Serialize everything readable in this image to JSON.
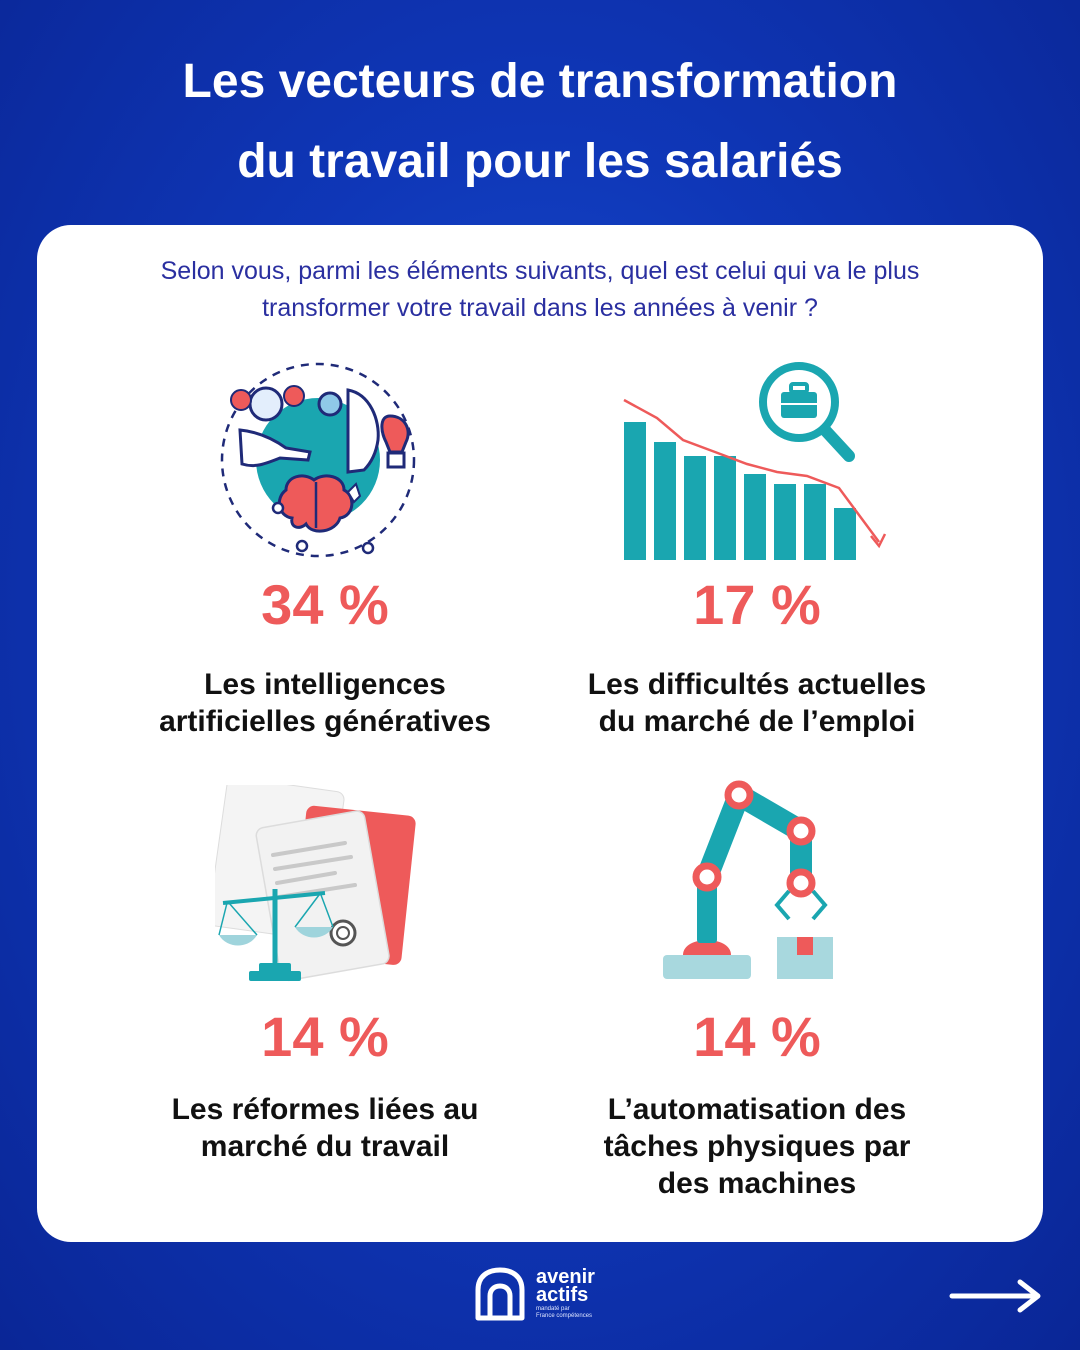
{
  "title": {
    "line1": "Les vecteurs de transformation",
    "line2": "du travail pour les salariés"
  },
  "question": "Selon vous, parmi les éléments suivants, quel est celui qui va le plus transformer votre travail dans les années à venir ?",
  "items": [
    {
      "percent": "34 %",
      "label_line1": "Les intelligences",
      "label_line2": "artificielles génératives",
      "label_line3": "",
      "icon": "ai-brain-icon"
    },
    {
      "percent": "17 %",
      "label_line1": "Les difficultés actuelles",
      "label_line2": "du marché de l’emploi",
      "label_line3": "",
      "icon": "declining-bar-chart-icon"
    },
    {
      "percent": "14 %",
      "label_line1": "Les réformes liées au",
      "label_line2": "marché du travail",
      "label_line3": "",
      "icon": "legal-documents-scale-icon"
    },
    {
      "percent": "14 %",
      "label_line1": "L’automatisation des",
      "label_line2": "tâches physiques par",
      "label_line3": "des machines",
      "icon": "robot-arm-icon"
    }
  ],
  "footer": {
    "logo_line1": "avenir",
    "logo_line2": "actifs",
    "logo_sub_line1": "mandaté par",
    "logo_sub_line2": "France compétences",
    "next_icon": "right-arrow-icon"
  },
  "colors": {
    "background": "#0f37b8",
    "accent_red": "#ee5a5a",
    "teal": "#1aa6b0",
    "question_text": "#2a2fa0"
  }
}
